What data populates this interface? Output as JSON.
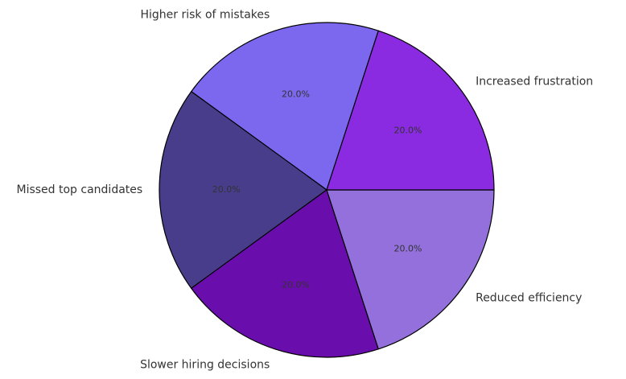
{
  "chart_data": {
    "type": "pie",
    "title": "",
    "start_angle_deg": 72,
    "direction": "counterclockwise",
    "slices": [
      {
        "label": "Higher risk of mistakes",
        "value": 20.0,
        "pct_label": "20.0%",
        "color": "#7b68ee"
      },
      {
        "label": "Missed top candidates",
        "value": 20.0,
        "pct_label": "20.0%",
        "color": "#483d8b"
      },
      {
        "label": "Slower hiring decisions",
        "value": 20.0,
        "pct_label": "20.0%",
        "color": "#6a0dad"
      },
      {
        "label": "Reduced efficiency",
        "value": 20.0,
        "pct_label": "20.0%",
        "color": "#9370db"
      },
      {
        "label": "Increased frustration",
        "value": 20.0,
        "pct_label": "20.0%",
        "color": "#8a2be2"
      }
    ]
  }
}
